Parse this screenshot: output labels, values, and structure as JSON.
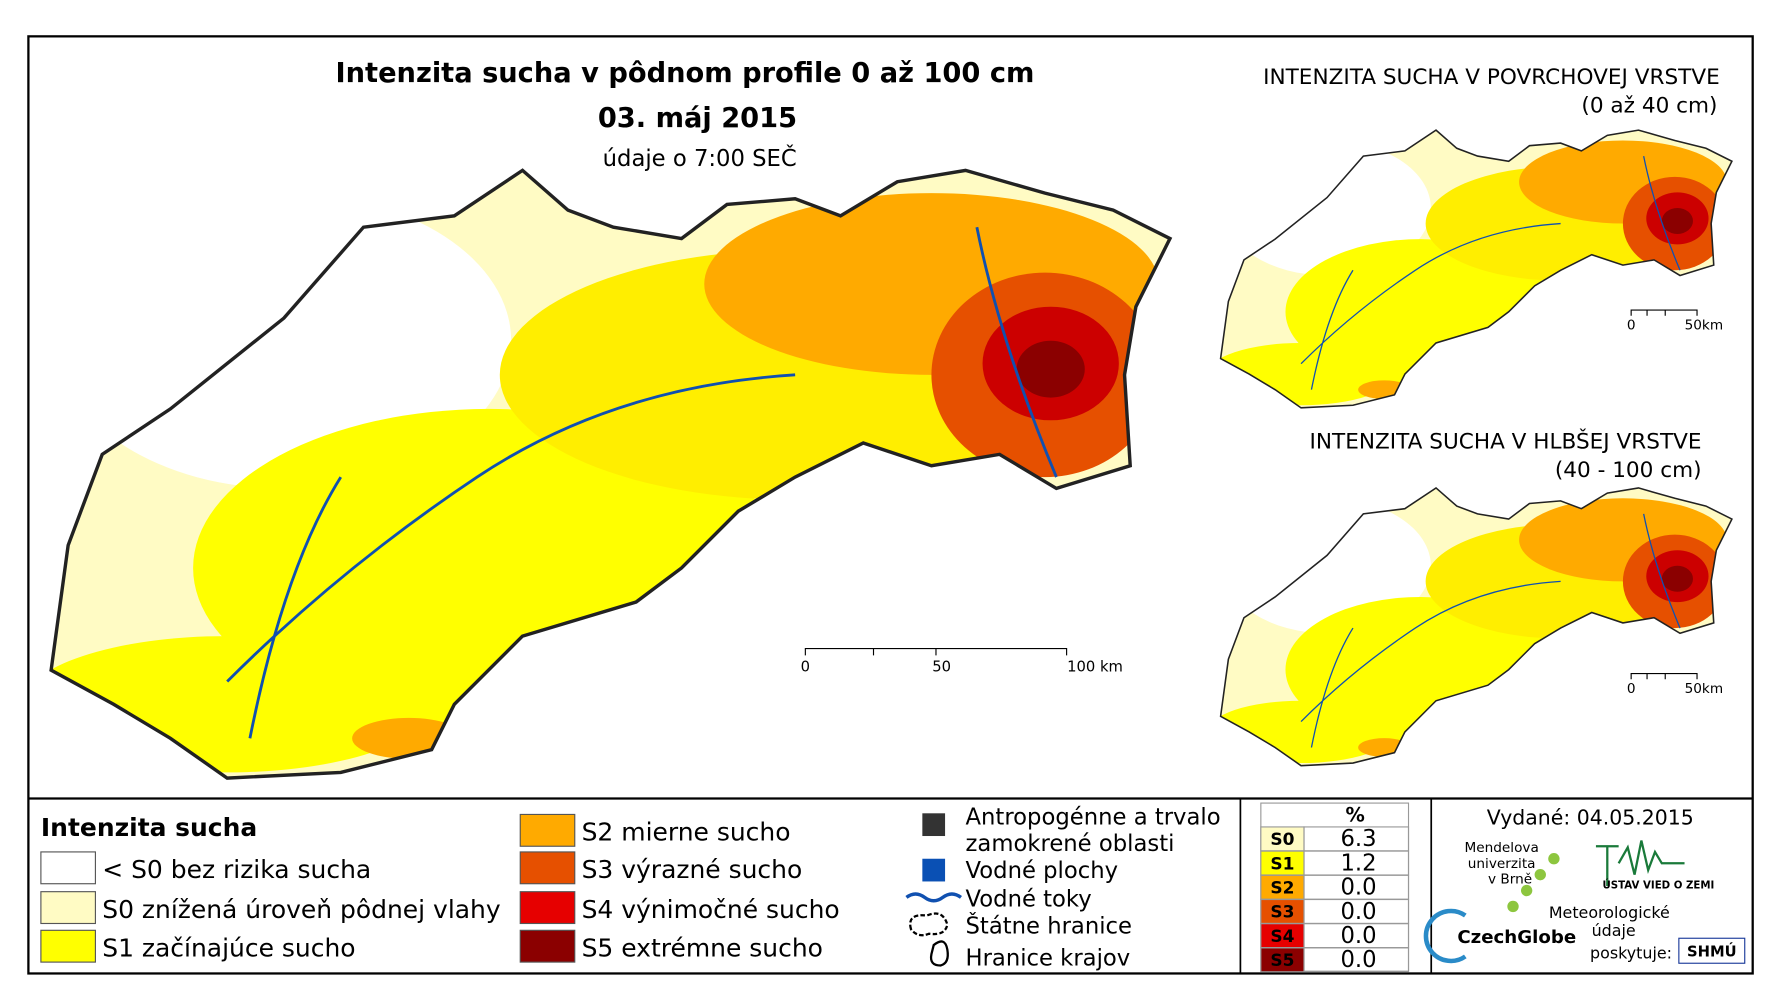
{
  "title": "Intenzita sucha v pôdnom profile 0 až 100 cm",
  "date": "03. máj 2015",
  "time_note": "údaje o 7:00 SEČ",
  "main_scale": {
    "labels": [
      "0",
      "50",
      "100 km"
    ]
  },
  "insets": [
    {
      "title": "INTENZITA SUCHA V POVRCHOVEJ VRSTVE",
      "subtitle": "(0 až 40 cm)",
      "scale_labels": [
        "0",
        "50km"
      ]
    },
    {
      "title": "INTENZITA SUCHA V HLBŠEJ VRSTVE",
      "subtitle": "(40 - 100 cm)",
      "scale_labels": [
        "0",
        "50km"
      ]
    }
  ],
  "legend": {
    "title": "Intenzita sucha",
    "classes": [
      "< S0 bez rizika sucha",
      "S0 znížená úroveň pôdnej vlahy",
      "S1 začínajúce sucho",
      "S2 mierne sucho",
      "S3 výrazné sucho",
      "S4 výnimočné sucho",
      "S5 extrémne sucho"
    ],
    "symbols": [
      [
        "Antropogénne a trvalo",
        "zamokrené oblasti"
      ],
      "Vodné plochy",
      "Vodné toky",
      "Štátne hranice",
      "Hranice krajov"
    ]
  },
  "table": {
    "header": "%",
    "rows": [
      [
        "S0",
        "6.3"
      ],
      [
        "S1",
        "1.2"
      ],
      [
        "S2",
        "0.0"
      ],
      [
        "S3",
        "0.0"
      ],
      [
        "S4",
        "0.0"
      ],
      [
        "S5",
        "0.0"
      ]
    ]
  },
  "issued": "Vydané: 04.05.2015",
  "logos": {
    "mendel": [
      "Mendelova",
      "univerzita",
      "v Brně"
    ],
    "czechglobe": "CzechGlobe",
    "ustav": "ÚSTAV VIED O ZEMI",
    "meteo": [
      "Meteorologické",
      "údaje",
      "poskytuje:"
    ],
    "shmu": "SHMÚ"
  }
}
